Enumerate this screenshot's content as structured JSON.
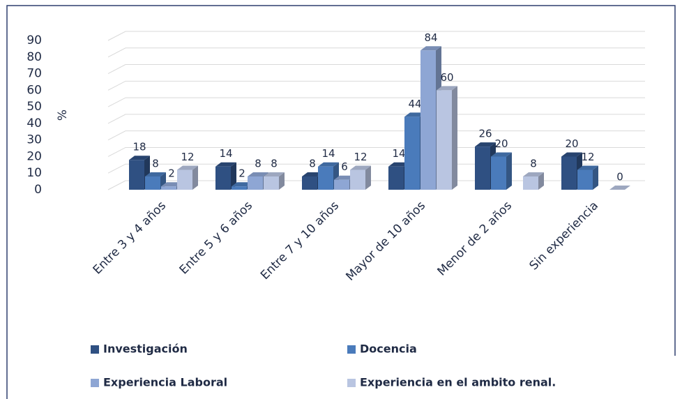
{
  "chart_data": {
    "type": "bar3d",
    "y_label": "%",
    "categories": [
      "Entre 3 y 4 años",
      "Entre 5 y 6 años",
      "Entre 7 y 10 años",
      "Mayor de 10 años",
      "Menor de 2 años",
      "Sin experiencia"
    ],
    "series": [
      {
        "name": "Investigación",
        "color": "#2f5082",
        "values": [
          18,
          14,
          8,
          14,
          26,
          20
        ]
      },
      {
        "name": "Docencia",
        "color": "#4a7bbb",
        "values": [
          8,
          2,
          14,
          44,
          20,
          12
        ]
      },
      {
        "name": "Experiencia Laboral",
        "color": "#8ea6d4",
        "values": [
          2,
          8,
          6,
          84,
          null,
          null
        ]
      },
      {
        "name": "Experiencia en el ambito renal.",
        "color": "#b9c5e1",
        "values": [
          12,
          8,
          12,
          60,
          8,
          0
        ]
      }
    ],
    "ylim": [
      0,
      90
    ],
    "yticks": [
      0,
      10,
      20,
      30,
      40,
      50,
      60,
      70,
      80,
      90
    ],
    "grid": true
  }
}
